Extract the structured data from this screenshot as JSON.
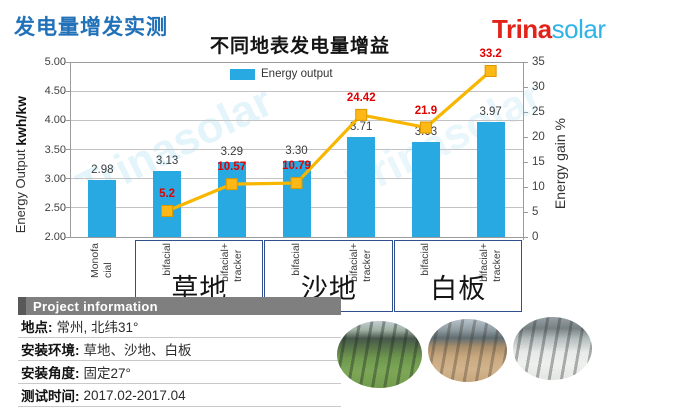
{
  "page_title": "发电量增发实测",
  "chart_title": "不同地表发电量增益",
  "logo": {
    "brand_red": "Trina",
    "brand_blue": "solar"
  },
  "watermark_text": "Trinasolar",
  "chart_data": {
    "type": "bar+line",
    "title": "不同地表发电量增益",
    "categories": [
      "Monofa\ncial",
      "bifacial",
      "bifacial+\ntracker",
      "bifacial",
      "bifacial+\ntracker",
      "bifacial",
      "bifacial+\ntracker"
    ],
    "groups": [
      {
        "label": "草地",
        "from": 1,
        "to": 3
      },
      {
        "label": "沙地",
        "from": 3,
        "to": 5
      },
      {
        "label": "白板",
        "from": 5,
        "to": 7
      }
    ],
    "bar_series": {
      "name": "Energy output",
      "axis": "left",
      "values": [
        2.98,
        3.13,
        3.29,
        3.3,
        3.71,
        3.63,
        3.97
      ],
      "labels": [
        "2.98",
        "3.13",
        "3.29",
        "3.30",
        "3.71",
        "3.63",
        "3.97"
      ],
      "color": "#29a9e1",
      "label_color": "#3d3d3d"
    },
    "line_series": {
      "name": "Energy gain",
      "axis": "right",
      "values": [
        null,
        5.2,
        10.57,
        10.79,
        24.42,
        21.9,
        33.2
      ],
      "labels": [
        "",
        "5.2",
        "10.57",
        "10.79",
        "24.42",
        "21.9",
        "33.2"
      ],
      "color": "#f7b600",
      "marker_color": "#fdb815",
      "marker_border": "#d99800",
      "label_color": "#e00000"
    },
    "left_axis": {
      "label_regular": "Energy Output ",
      "label_bold": "kwh/kw",
      "min": 2.0,
      "max": 5.0,
      "step": 0.5,
      "tick_labels": [
        "2.00",
        "2.50",
        "3.00",
        "3.50",
        "4.00",
        "4.50",
        "5.00"
      ]
    },
    "right_axis": {
      "label": "Energy gain %",
      "min": 0,
      "max": 35,
      "step": 5,
      "tick_labels": [
        "0",
        "5",
        "10",
        "15",
        "20",
        "25",
        "30",
        "35"
      ]
    },
    "legend": {
      "position": "top-center-inside",
      "entries": [
        {
          "label": "Energy output",
          "color": "#29a9e1"
        }
      ]
    },
    "grid": true,
    "group_box_color": "#2f4f8f"
  },
  "info_panel": {
    "title": "Project information",
    "rows": [
      {
        "label": "地点:",
        "value": "常州, 北纬31°"
      },
      {
        "label": "安装环境:",
        "value": "草地、沙地、白板"
      },
      {
        "label": "安装角度:",
        "value": "固定27°"
      },
      {
        "label": "测试时间:",
        "value": "2017.02-2017.04"
      }
    ]
  },
  "photos": [
    {
      "name": "grass-site-photo"
    },
    {
      "name": "sand-site-photo"
    },
    {
      "name": "whiteboard-site-photo"
    }
  ]
}
